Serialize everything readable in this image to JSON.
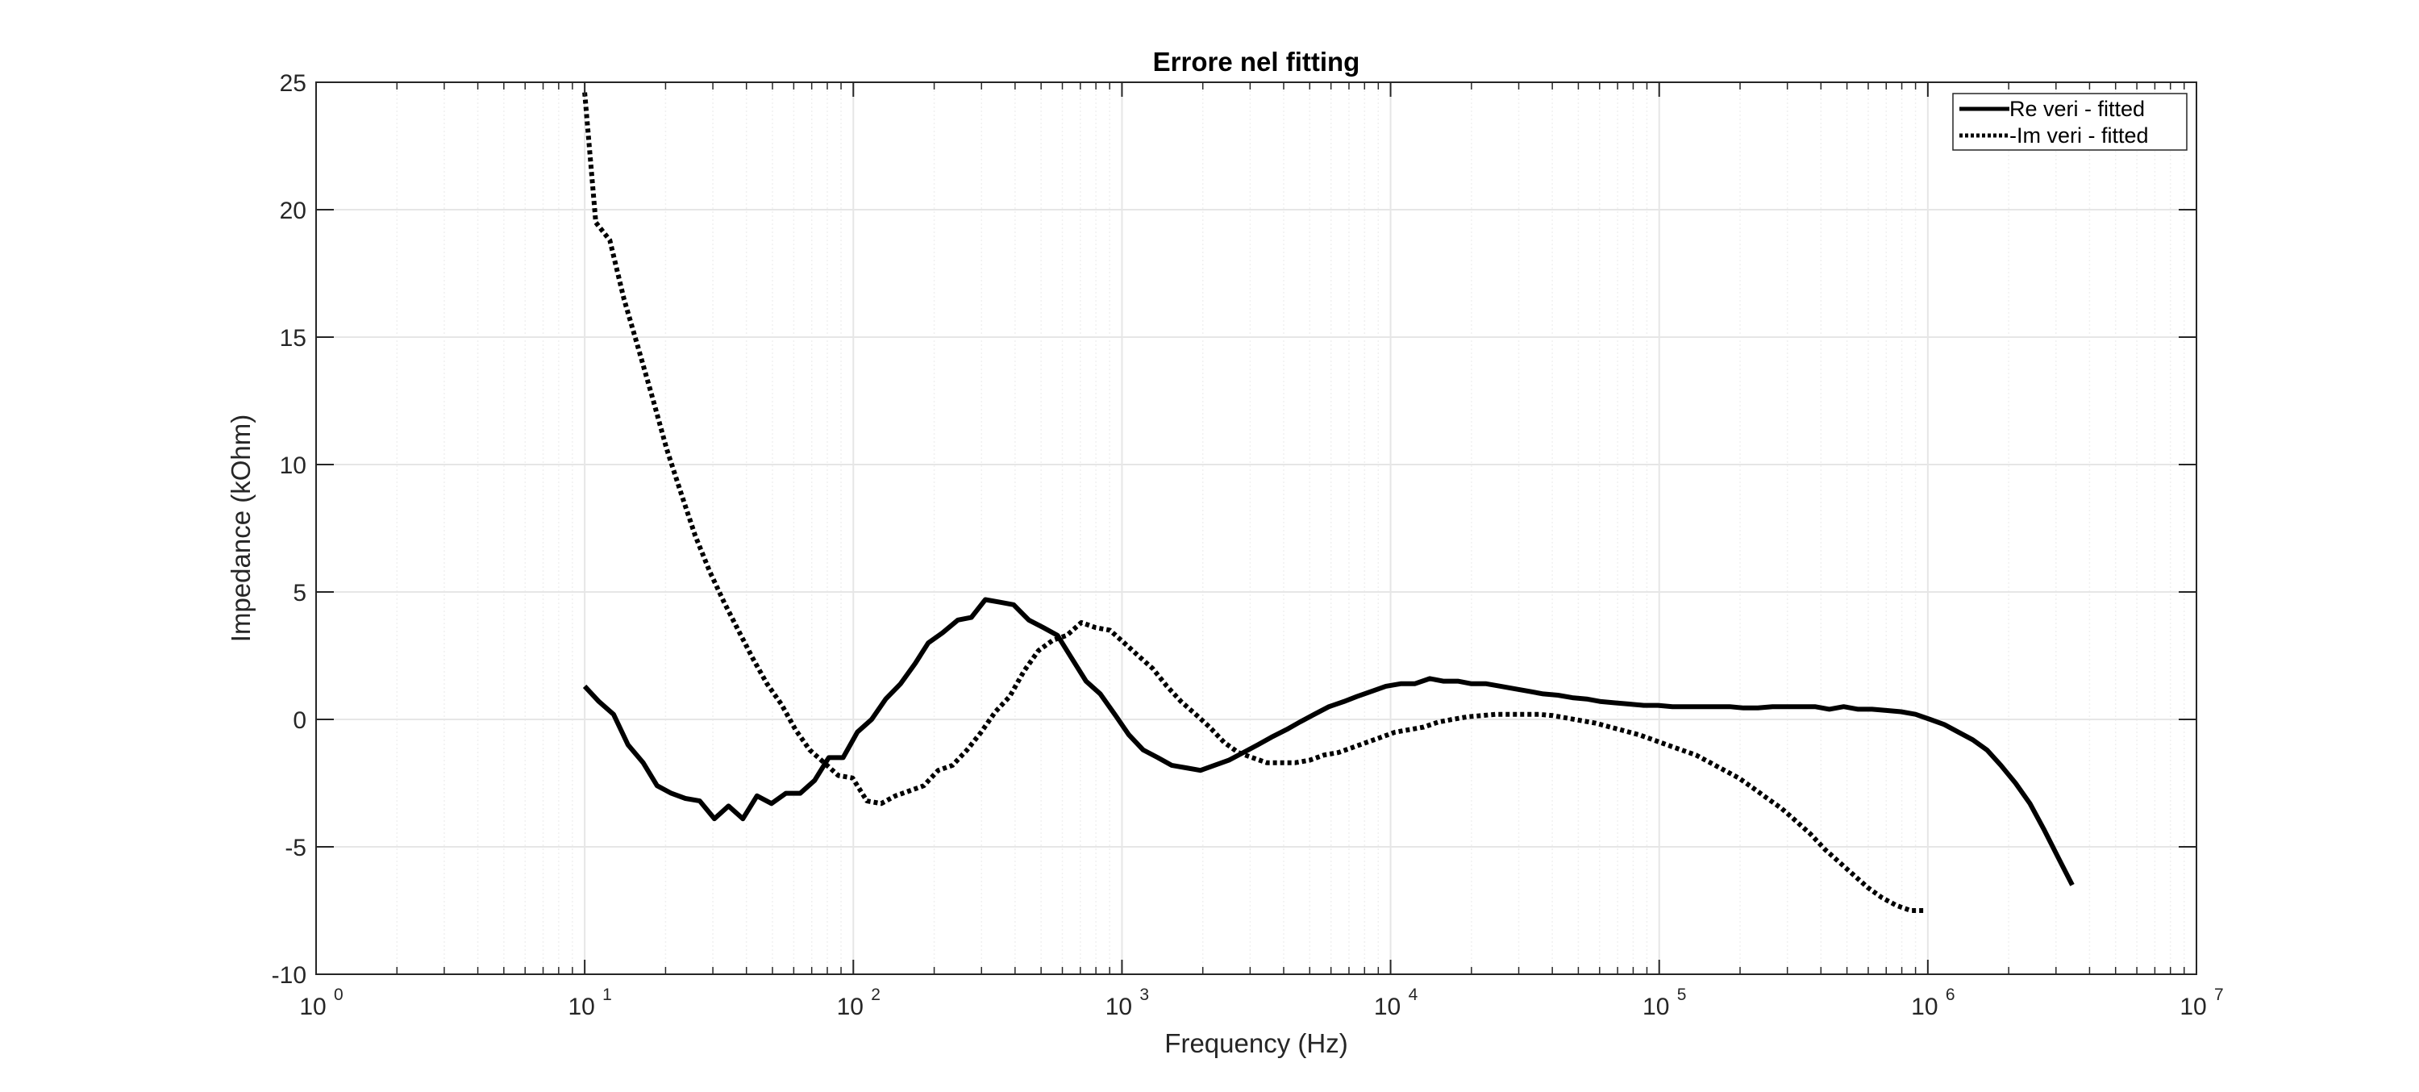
{
  "chart_data": {
    "type": "line",
    "title": "Errore nel fitting",
    "xlabel": "Frequency (Hz)",
    "ylabel": "Impedance (kOhm)",
    "xscale": "log",
    "xlim": [
      1,
      10000000
    ],
    "ylim": [
      -10,
      25
    ],
    "x_tick_labels": [
      {
        "base": "10",
        "exp": "0"
      },
      {
        "base": "10",
        "exp": "1"
      },
      {
        "base": "10",
        "exp": "2"
      },
      {
        "base": "10",
        "exp": "3"
      },
      {
        "base": "10",
        "exp": "4"
      },
      {
        "base": "10",
        "exp": "5"
      },
      {
        "base": "10",
        "exp": "6"
      },
      {
        "base": "10",
        "exp": "7"
      }
    ],
    "y_ticks": [
      -10,
      -5,
      0,
      5,
      10,
      15,
      20,
      25
    ],
    "y_tick_labels": [
      "-10",
      "-5",
      "0",
      "5",
      "10",
      "15",
      "20",
      "25"
    ],
    "grid": true,
    "legend_position": "top-right",
    "colors": {
      "axis": "#262626",
      "grid": "#e6e6e6",
      "line": "#000000"
    },
    "series": [
      {
        "name": "Re veri - fitted",
        "style": "solid",
        "points": [
          [
            10,
            1.3
          ],
          [
            11.3,
            0.7
          ],
          [
            12.8,
            0.2
          ],
          [
            14.5,
            -1.0
          ],
          [
            16.5,
            -1.7
          ],
          [
            18.6,
            -2.6
          ],
          [
            21,
            -2.9
          ],
          [
            23.7,
            -3.1
          ],
          [
            26.8,
            -3.2
          ],
          [
            30.4,
            -3.9
          ],
          [
            34.3,
            -3.4
          ],
          [
            38.8,
            -3.9
          ],
          [
            43.8,
            -3.0
          ],
          [
            49.6,
            -3.3
          ],
          [
            56.1,
            -2.9
          ],
          [
            63.4,
            -2.9
          ],
          [
            71.7,
            -2.4
          ],
          [
            81,
            -1.5
          ],
          [
            91.6,
            -1.5
          ],
          [
            103.5,
            -0.5
          ],
          [
            117,
            0.0
          ],
          [
            132,
            0.8
          ],
          [
            150,
            1.4
          ],
          [
            170,
            2.2
          ],
          [
            190,
            3.0
          ],
          [
            215,
            3.4
          ],
          [
            245,
            3.9
          ],
          [
            275,
            4.0
          ],
          [
            310,
            4.7
          ],
          [
            350,
            4.6
          ],
          [
            395,
            4.5
          ],
          [
            450,
            3.9
          ],
          [
            510,
            3.6
          ],
          [
            575,
            3.3
          ],
          [
            650,
            2.4
          ],
          [
            735,
            1.5
          ],
          [
            830,
            1.0
          ],
          [
            940,
            0.2
          ],
          [
            1060,
            -0.6
          ],
          [
            1200,
            -1.2
          ],
          [
            1360,
            -1.5
          ],
          [
            1530,
            -1.8
          ],
          [
            1730,
            -1.9
          ],
          [
            1960,
            -2.0
          ],
          [
            2210,
            -1.8
          ],
          [
            2500,
            -1.6
          ],
          [
            2830,
            -1.3
          ],
          [
            3200,
            -1.0
          ],
          [
            3600,
            -0.7
          ],
          [
            4100,
            -0.4
          ],
          [
            4600,
            -0.1
          ],
          [
            5200,
            0.2
          ],
          [
            5900,
            0.5
          ],
          [
            6700,
            0.7
          ],
          [
            7500,
            0.9
          ],
          [
            8500,
            1.1
          ],
          [
            9600,
            1.3
          ],
          [
            10900,
            1.4
          ],
          [
            12300,
            1.4
          ],
          [
            14000,
            1.6
          ],
          [
            15700,
            1.5
          ],
          [
            17800,
            1.5
          ],
          [
            20000,
            1.4
          ],
          [
            22700,
            1.4
          ],
          [
            25700,
            1.3
          ],
          [
            29000,
            1.2
          ],
          [
            32800,
            1.1
          ],
          [
            37000,
            1.0
          ],
          [
            42000,
            0.95
          ],
          [
            47500,
            0.85
          ],
          [
            53700,
            0.8
          ],
          [
            60700,
            0.7
          ],
          [
            68600,
            0.65
          ],
          [
            77500,
            0.6
          ],
          [
            87600,
            0.55
          ],
          [
            99000,
            0.55
          ],
          [
            112000,
            0.5
          ],
          [
            126000,
            0.5
          ],
          [
            143000,
            0.5
          ],
          [
            162000,
            0.5
          ],
          [
            183000,
            0.5
          ],
          [
            206000,
            0.45
          ],
          [
            233000,
            0.45
          ],
          [
            264000,
            0.5
          ],
          [
            298000,
            0.5
          ],
          [
            336000,
            0.5
          ],
          [
            380000,
            0.5
          ],
          [
            430000,
            0.4
          ],
          [
            486000,
            0.5
          ],
          [
            550000,
            0.4
          ],
          [
            620000,
            0.4
          ],
          [
            700000,
            0.35
          ],
          [
            795000,
            0.3
          ],
          [
            900000,
            0.2
          ],
          [
            1020000,
            0.0
          ],
          [
            1150000,
            -0.2
          ],
          [
            1300000,
            -0.5
          ],
          [
            1470000,
            -0.8
          ],
          [
            1660000,
            -1.2
          ],
          [
            1870000,
            -1.8
          ],
          [
            2120000,
            -2.5
          ],
          [
            2400000,
            -3.3
          ],
          [
            2700000,
            -4.3
          ],
          [
            3050000,
            -5.4
          ],
          [
            3450000,
            -6.5
          ]
        ]
      },
      {
        "name": "-Im veri - fitted",
        "style": "dotted",
        "points": [
          [
            10,
            24.6
          ],
          [
            11,
            19.5
          ],
          [
            12.4,
            18.8
          ],
          [
            14,
            16.5
          ],
          [
            15.8,
            14.6
          ],
          [
            17.9,
            12.6
          ],
          [
            20.2,
            10.6
          ],
          [
            22.8,
            8.9
          ],
          [
            25.8,
            7.2
          ],
          [
            29.2,
            5.8
          ],
          [
            33,
            4.6
          ],
          [
            37.3,
            3.5
          ],
          [
            42.2,
            2.4
          ],
          [
            47.7,
            1.4
          ],
          [
            53.9,
            0.6
          ],
          [
            60.9,
            -0.4
          ],
          [
            68.8,
            -1.2
          ],
          [
            77.8,
            -1.7
          ],
          [
            87.9,
            -2.2
          ],
          [
            99.4,
            -2.3
          ],
          [
            112.3,
            -3.2
          ],
          [
            127,
            -3.3
          ],
          [
            143.5,
            -3.0
          ],
          [
            162.2,
            -2.8
          ],
          [
            183,
            -2.6
          ],
          [
            207,
            -2.0
          ],
          [
            234,
            -1.8
          ],
          [
            265,
            -1.2
          ],
          [
            299,
            -0.5
          ],
          [
            338,
            0.3
          ],
          [
            382,
            0.9
          ],
          [
            432,
            1.9
          ],
          [
            489,
            2.7
          ],
          [
            552,
            3.1
          ],
          [
            624,
            3.3
          ],
          [
            706,
            3.8
          ],
          [
            798,
            3.6
          ],
          [
            902,
            3.5
          ],
          [
            1020,
            3.0
          ],
          [
            1150,
            2.5
          ],
          [
            1300,
            2.0
          ],
          [
            1470,
            1.3
          ],
          [
            1660,
            0.7
          ],
          [
            1880,
            0.2
          ],
          [
            2120,
            -0.3
          ],
          [
            2400,
            -0.9
          ],
          [
            2710,
            -1.3
          ],
          [
            3060,
            -1.5
          ],
          [
            3460,
            -1.7
          ],
          [
            3910,
            -1.7
          ],
          [
            4420,
            -1.7
          ],
          [
            5000,
            -1.6
          ],
          [
            5650,
            -1.4
          ],
          [
            6390,
            -1.3
          ],
          [
            7220,
            -1.1
          ],
          [
            8160,
            -0.9
          ],
          [
            9230,
            -0.7
          ],
          [
            10400,
            -0.5
          ],
          [
            11800,
            -0.4
          ],
          [
            13300,
            -0.3
          ],
          [
            15100,
            -0.1
          ],
          [
            17000,
            0.0
          ],
          [
            19300,
            0.1
          ],
          [
            21800,
            0.15
          ],
          [
            24600,
            0.2
          ],
          [
            27900,
            0.2
          ],
          [
            31500,
            0.2
          ],
          [
            35600,
            0.2
          ],
          [
            40200,
            0.15
          ],
          [
            45500,
            0.05
          ],
          [
            51400,
            -0.05
          ],
          [
            58100,
            -0.15
          ],
          [
            65700,
            -0.3
          ],
          [
            74300,
            -0.45
          ],
          [
            84000,
            -0.6
          ],
          [
            95000,
            -0.8
          ],
          [
            107000,
            -1.0
          ],
          [
            121000,
            -1.2
          ],
          [
            137000,
            -1.4
          ],
          [
            155000,
            -1.7
          ],
          [
            175000,
            -2.0
          ],
          [
            198000,
            -2.3
          ],
          [
            224000,
            -2.7
          ],
          [
            253000,
            -3.1
          ],
          [
            286000,
            -3.5
          ],
          [
            324000,
            -4.0
          ],
          [
            366000,
            -4.5
          ],
          [
            414000,
            -5.1
          ],
          [
            468000,
            -5.6
          ],
          [
            529000,
            -6.1
          ],
          [
            598000,
            -6.6
          ],
          [
            676000,
            -7.0
          ],
          [
            764000,
            -7.3
          ],
          [
            864000,
            -7.5
          ],
          [
            977000,
            -7.5
          ]
        ]
      }
    ]
  }
}
